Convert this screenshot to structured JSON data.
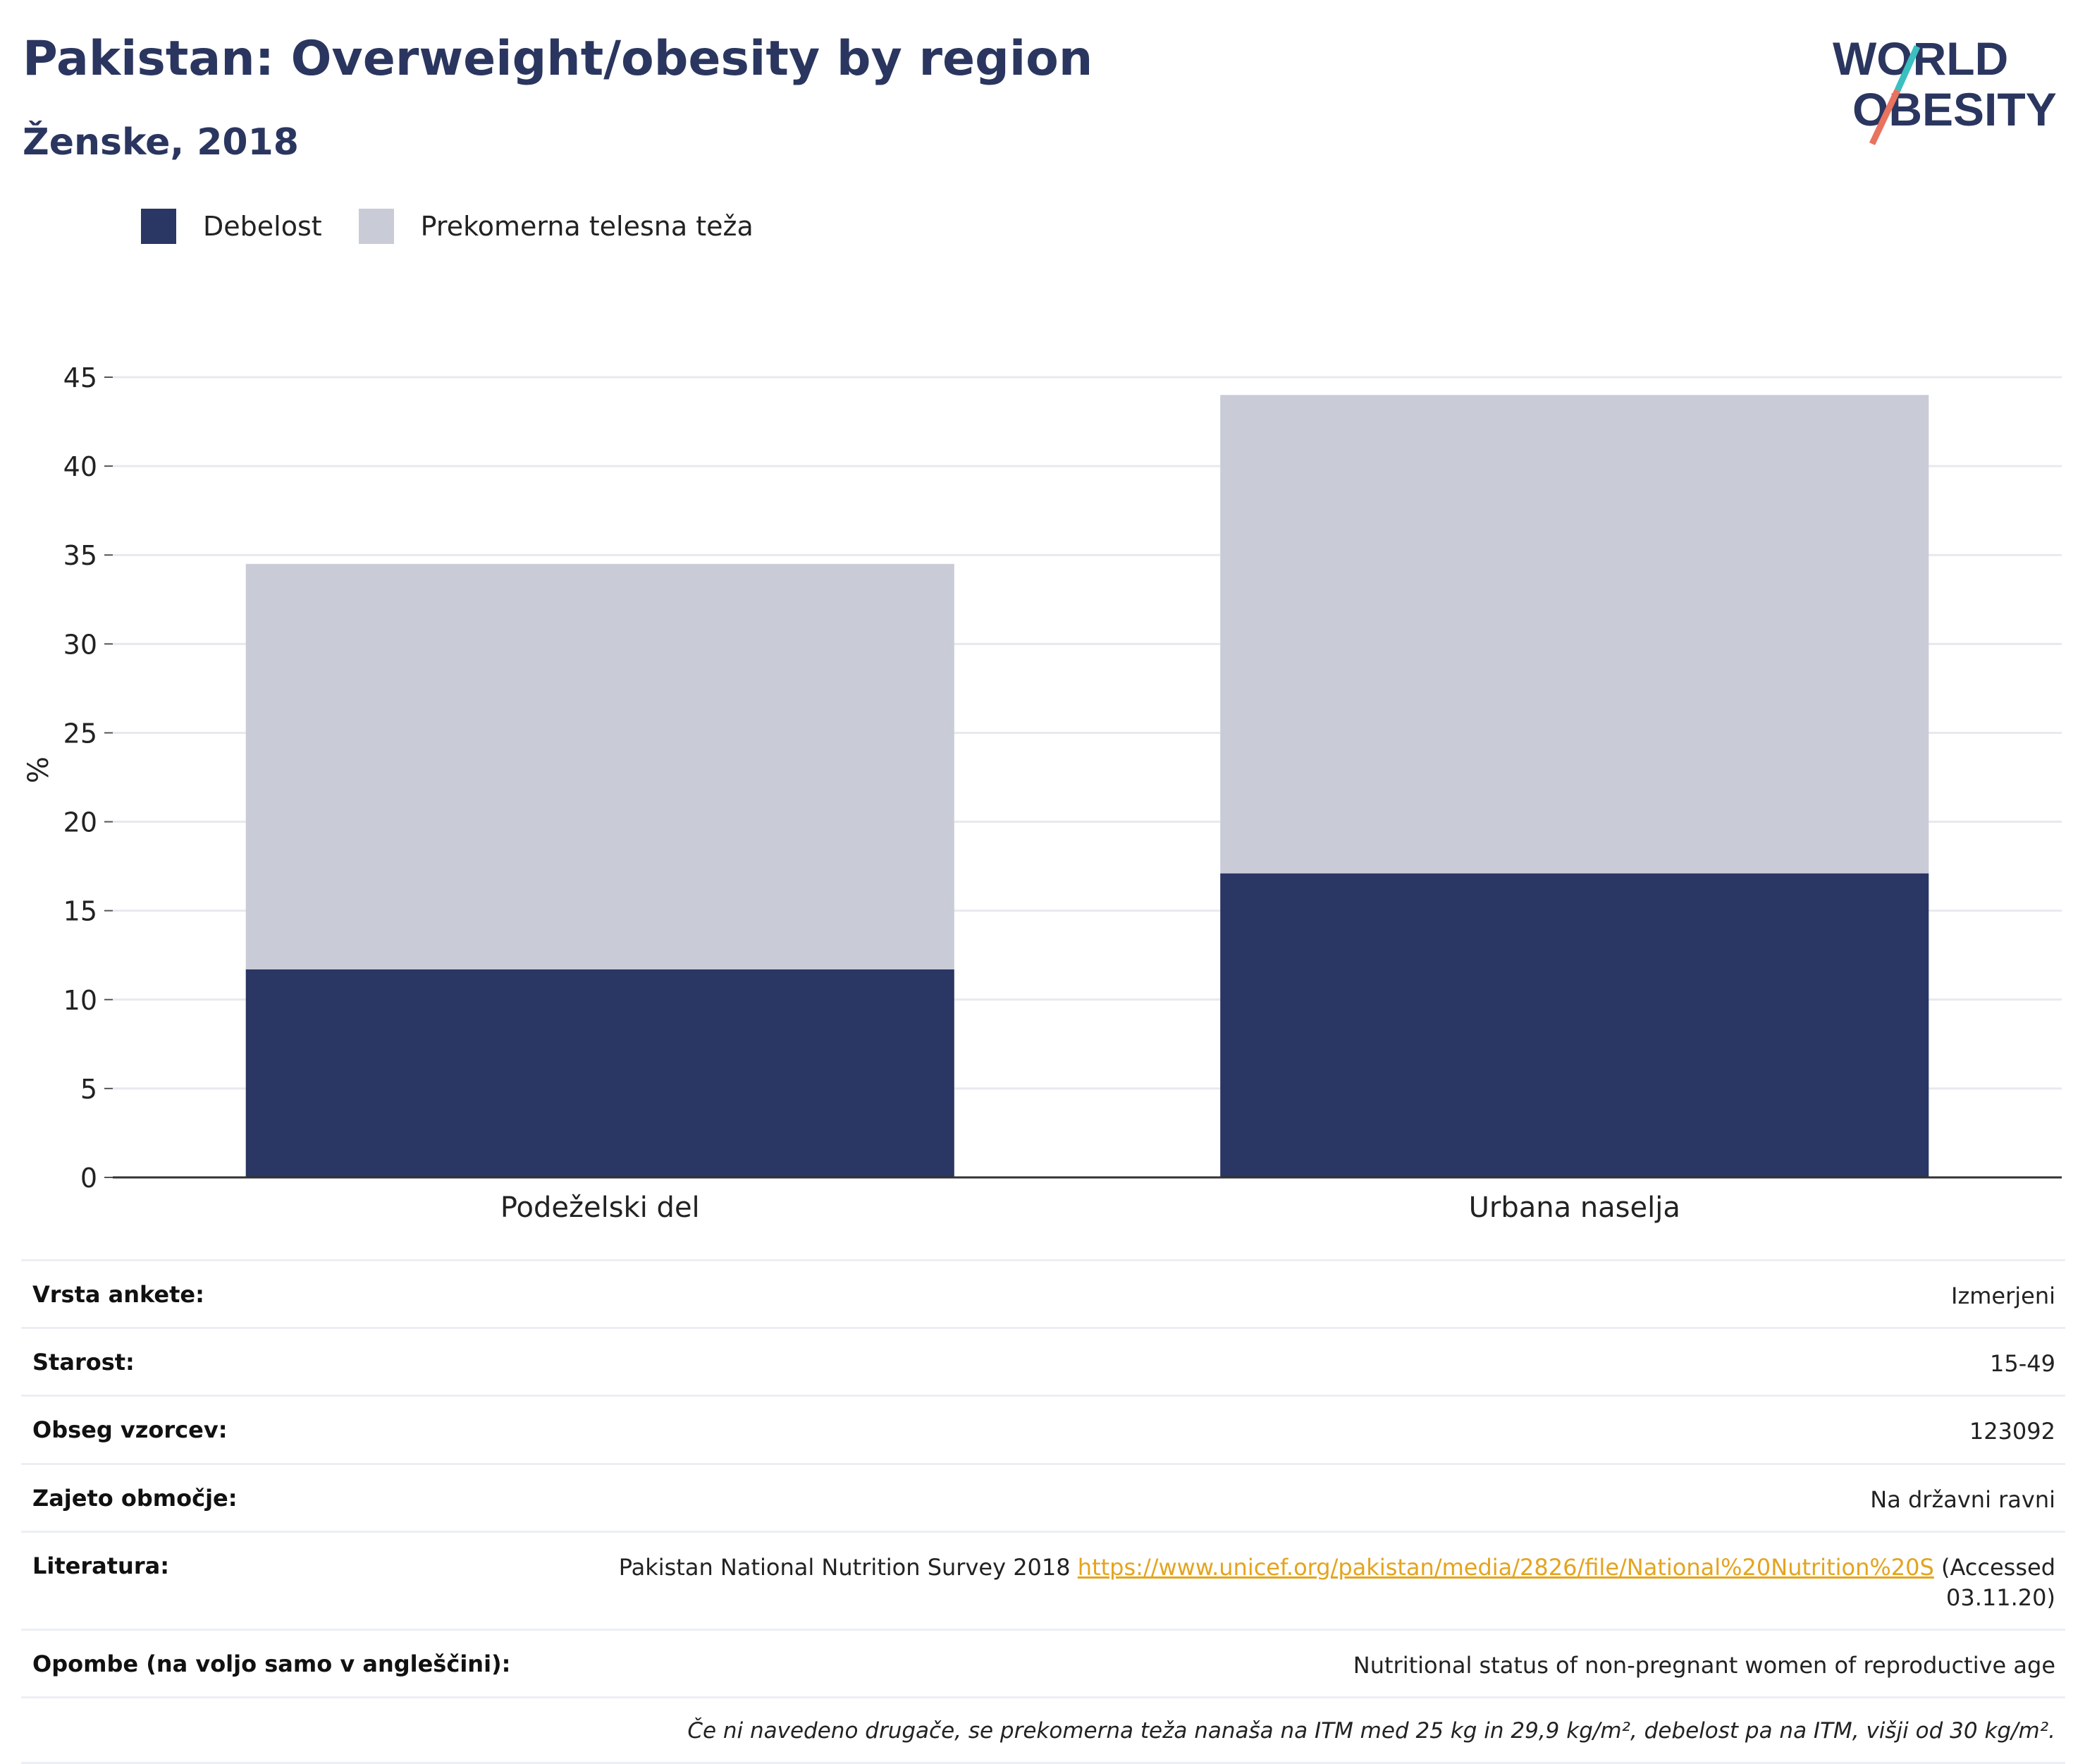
{
  "header": {
    "title": "Pakistan: Overweight/obesity by region",
    "subtitle": "Ženske, 2018"
  },
  "logo": {
    "line1": "WORLD",
    "line2": "OBESITY",
    "accent_teal": "#3bbfbf",
    "accent_coral": "#e8735e"
  },
  "colors": {
    "obesity": "#2a3663",
    "overweight": "#c9cbd7",
    "title": "#2a365f",
    "link": "#e3a41f"
  },
  "chart_data": {
    "type": "bar",
    "stacked": true,
    "categories": [
      "Podeželski del",
      "Urbana naselja"
    ],
    "series": [
      {
        "name": "Debelost",
        "values": [
          11.7,
          17.1
        ]
      },
      {
        "name": "Prekomerna telesna teža",
        "values": [
          22.8,
          26.9
        ]
      }
    ],
    "ylabel": "%",
    "ylim": [
      0,
      45
    ],
    "yticks": [
      "0",
      "5",
      "10",
      "15",
      "20",
      "25",
      "30",
      "35",
      "40",
      "45"
    ],
    "grid": true,
    "legend_position": "top-left"
  },
  "info": {
    "rows": [
      {
        "label": "Vrsta ankete:",
        "value": "Izmerjeni"
      },
      {
        "label": "Starost:",
        "value": "15-49"
      },
      {
        "label": "Obseg vzorcev:",
        "value": "123092"
      },
      {
        "label": "Zajeto območje:",
        "value": "Na državni ravni"
      }
    ],
    "literature": {
      "label": "Literatura:",
      "text_before": "Pakistan National Nutrition Survey 2018 ",
      "link": "https://www.unicef.org/pakistan/media/2826/file/National%20Nutrition%20S",
      "text_after": " (Accessed 03.11.20)"
    },
    "notes": {
      "label": "Opombe (na voljo samo v angleščini):",
      "value": "Nutritional status of non-pregnant women of reproductive age"
    },
    "footnote": "Če ni navedeno drugače, se prekomerna teža nanaša na ITM med 25 kg in 29,9 kg/m², debelost pa na ITM, višji od 30 kg/m²."
  }
}
